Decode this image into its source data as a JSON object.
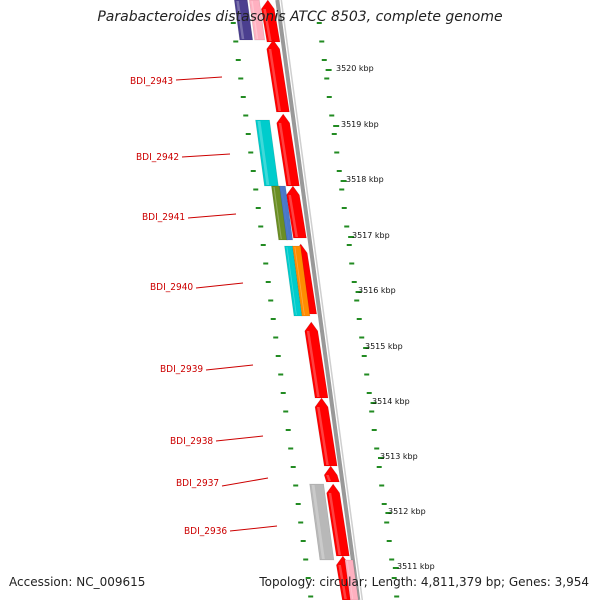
{
  "title": "Parabacteroides distasonis ATCC 8503, complete genome",
  "accession": "Accession: NC_009615",
  "summary": "Topology: circular; Length: 4,811,379 bp; Genes: 3,954",
  "colors": {
    "cds": "#ff0000",
    "cog_cyan": "#00cccc",
    "cog_olive": "#6b8e23",
    "cog_orange": "#ff8c00",
    "cog_purple": "#4b3f8f",
    "cog_gray": "#b8b8b8",
    "backbone": "#999999",
    "ticks": "#228b22",
    "label": "#cc0000"
  },
  "genes": [
    {
      "id": "BDI_2943"
    },
    {
      "id": "BDI_2942"
    },
    {
      "id": "BDI_2941"
    },
    {
      "id": "BDI_2940"
    },
    {
      "id": "BDI_2939"
    },
    {
      "id": "BDI_2938"
    },
    {
      "id": "BDI_2937"
    },
    {
      "id": "BDI_2936"
    }
  ],
  "scale_labels": [
    "3520 kbp",
    "3519 kbp",
    "3518 kbp",
    "3517 kbp",
    "3516 kbp",
    "3515 kbp",
    "3514 kbp",
    "3513 kbp",
    "3512 kbp",
    "3511 kbp"
  ]
}
